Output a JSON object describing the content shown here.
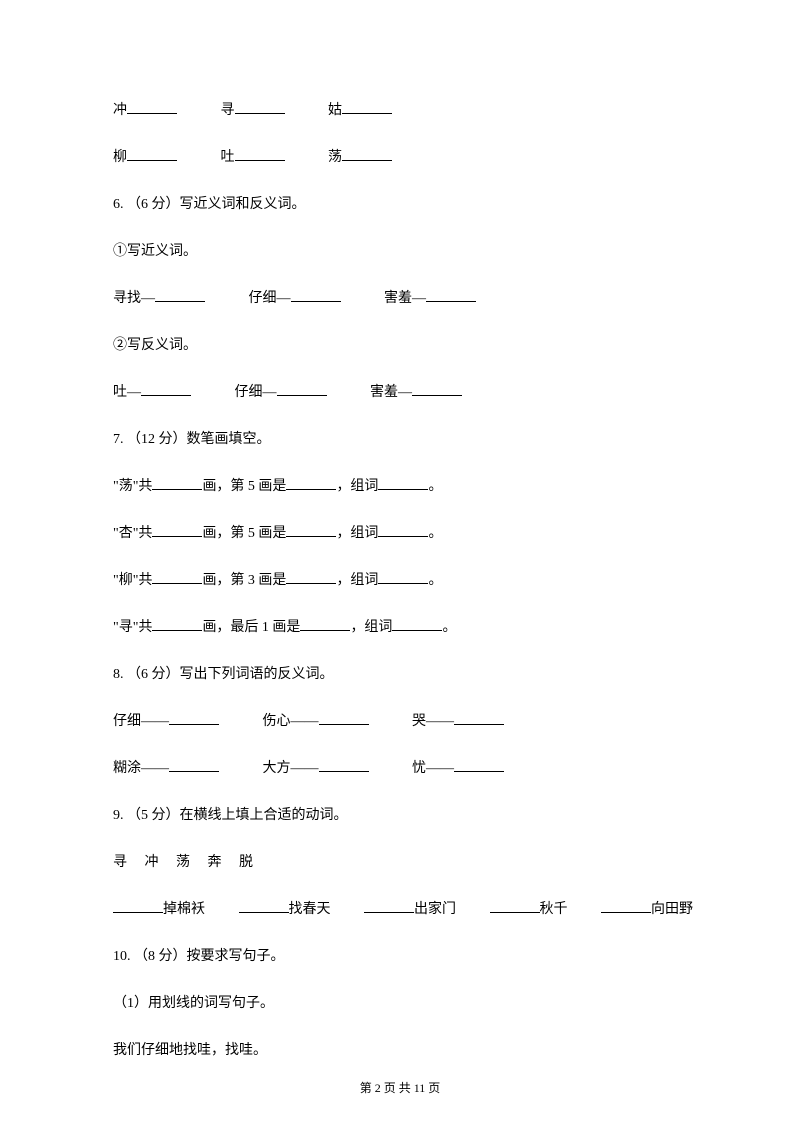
{
  "line1": {
    "c1": "冲",
    "c2": "寻",
    "c3": "姑"
  },
  "line2": {
    "c1": "柳",
    "c2": "吐",
    "c3": "荡"
  },
  "q6": {
    "title": "6. （6 分）写近义词和反义词。",
    "sub1": "①写近义词。",
    "sub1_items": {
      "w1": "寻找—",
      "w2": "仔细—",
      "w3": "害羞—"
    },
    "sub2": "②写反义词。",
    "sub2_items": {
      "w1": "吐—",
      "w2": "仔细—",
      "w3": "害羞—"
    }
  },
  "q7": {
    "title": "7. （12 分）数笔画填空。",
    "items": {
      "i1_p1": "\"荡\"共",
      "i1_p2": "画，第 5 画是",
      "i1_p3": "，组词",
      "i1_p4": "。",
      "i2_p1": "\"杏\"共",
      "i2_p2": "画，第 5 画是",
      "i2_p3": "，组词",
      "i2_p4": "。",
      "i3_p1": "\"柳\"共",
      "i3_p2": "画，第 3 画是",
      "i3_p3": "，组词",
      "i3_p4": "。",
      "i4_p1": "\"寻\"共",
      "i4_p2": "画，最后 1 画是",
      "i4_p3": "，组词",
      "i4_p4": "。"
    }
  },
  "q8": {
    "title": "8. （6 分）写出下列词语的反义词。",
    "row1": {
      "w1": "仔细——",
      "w2": "伤心——",
      "w3": "哭——"
    },
    "row2": {
      "w1": "糊涂——",
      "w2": "大方——",
      "w3": "忧——"
    }
  },
  "q9": {
    "title": "9. （5 分）在横线上填上合适的动词。",
    "words": "寻     冲     荡     奔     脱",
    "fills": {
      "f1": "掉棉袄",
      "f2": "找春天",
      "f3": "出家门",
      "f4": "秋千",
      "f5": "向田野"
    }
  },
  "q10": {
    "title": "10. （8 分）按要求写句子。",
    "sub1": "（1）用划线的词写句子。",
    "text": "我们仔细地找哇，找哇。"
  },
  "footer": {
    "text": "第 2 页 共 11 页"
  }
}
